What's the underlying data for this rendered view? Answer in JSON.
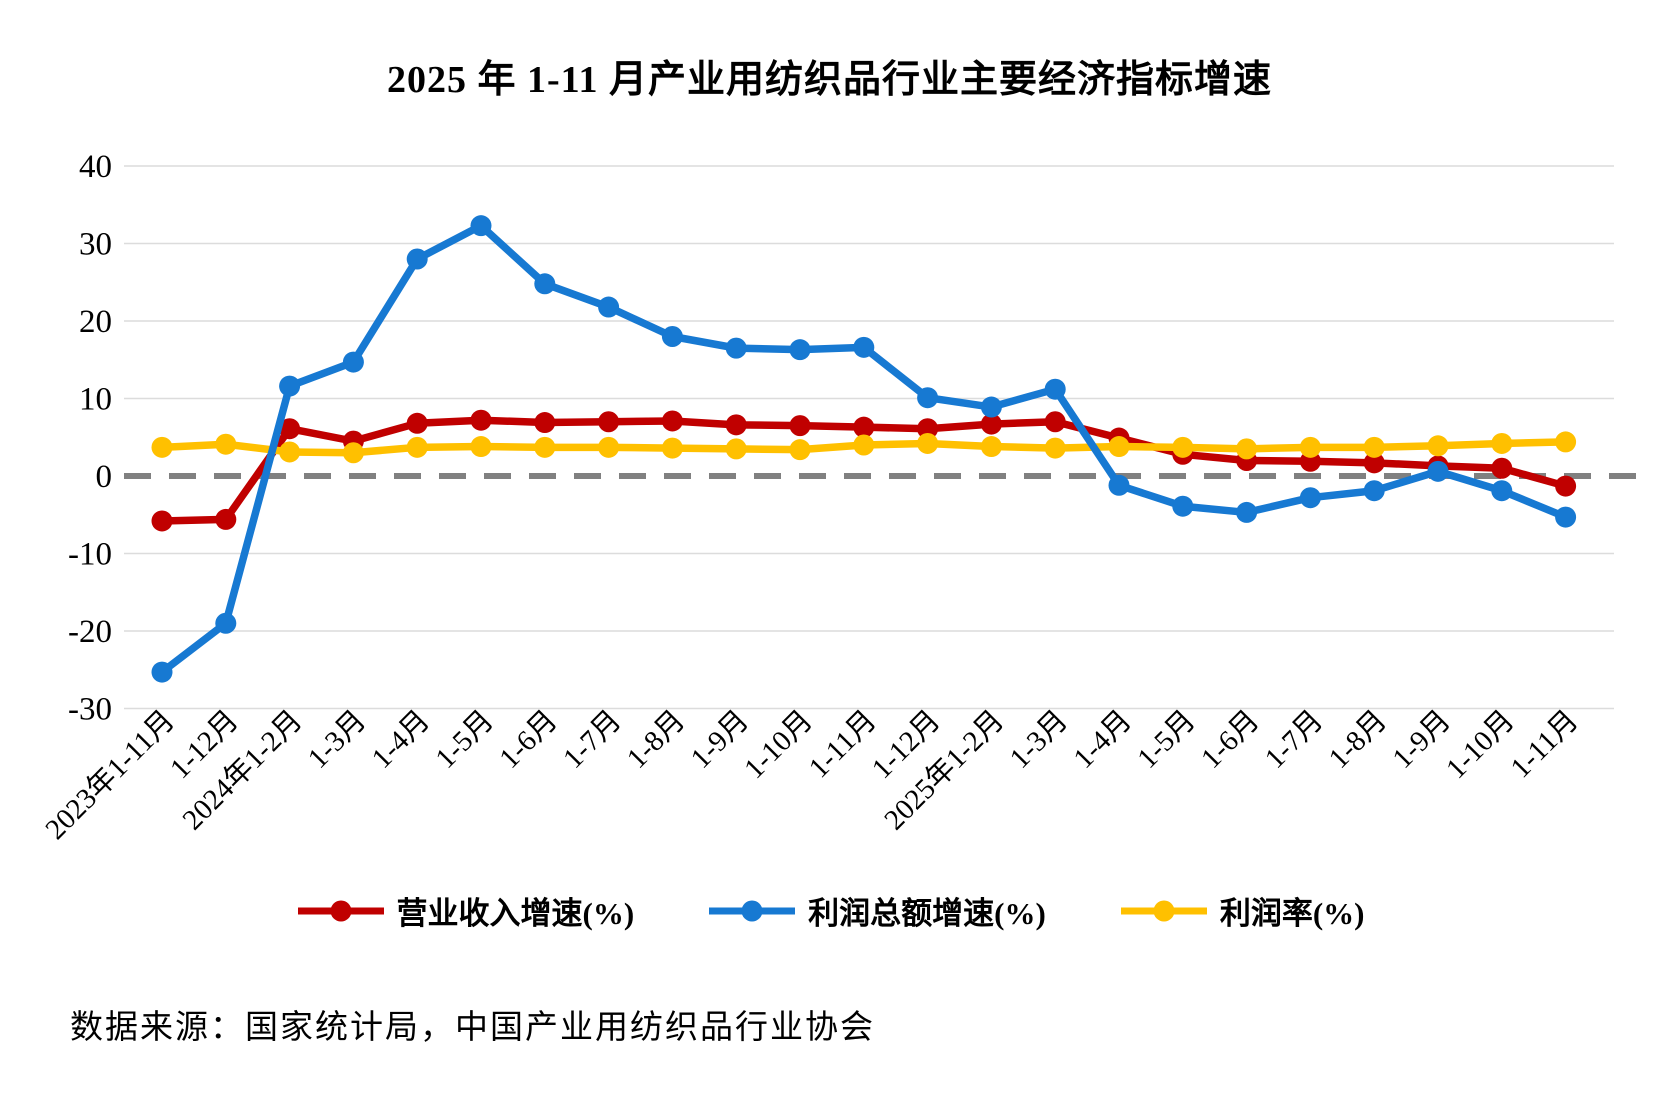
{
  "title": "2025 年 1-11 月产业用纺织品行业主要经济指标增速",
  "source": "数据来源：国家统计局，中国产业用纺织品行业协会",
  "chart_data": {
    "type": "line",
    "title": "2025 年 1-11 月产业用纺织品行业主要经济指标增速",
    "categories": [
      "2023年1-11月",
      "1-12月",
      "2024年1-2月",
      "1-3月",
      "1-4月",
      "1-5月",
      "1-6月",
      "1-7月",
      "1-8月",
      "1-9月",
      "1-10月",
      "1-11月",
      "1-12月",
      "2025年1-2月",
      "1-3月",
      "1-4月",
      "1-5月",
      "1-6月",
      "1-7月",
      "1-8月",
      "1-9月",
      "1-10月",
      "1-11月"
    ],
    "series": [
      {
        "name": "营业收入增速(%)",
        "color": "#C00000",
        "values": [
          -5.8,
          -5.6,
          6.1,
          4.5,
          6.8,
          7.2,
          6.9,
          7.0,
          7.1,
          6.6,
          6.5,
          6.3,
          6.1,
          6.7,
          7.0,
          4.9,
          2.8,
          2.0,
          1.9,
          1.7,
          1.3,
          1.0,
          -1.3
        ]
      },
      {
        "name": "利润总额增速(%)",
        "color": "#1779D2",
        "values": [
          -25.3,
          -19.0,
          11.6,
          14.7,
          28.0,
          32.3,
          24.8,
          21.8,
          18.0,
          16.5,
          16.3,
          16.6,
          10.1,
          8.9,
          11.2,
          -1.2,
          -3.9,
          -4.7,
          -2.8,
          -1.9,
          0.6,
          -1.9,
          -5.3
        ]
      },
      {
        "name": "利润率(%)",
        "color": "#FFC000",
        "values": [
          3.7,
          4.1,
          3.1,
          3.0,
          3.7,
          3.8,
          3.7,
          3.7,
          3.6,
          3.5,
          3.4,
          4.0,
          4.2,
          3.8,
          3.6,
          3.8,
          3.7,
          3.5,
          3.7,
          3.7,
          3.9,
          4.2,
          4.4
        ]
      }
    ],
    "ylim": [
      -30,
      40
    ],
    "yticks": [
      40,
      30,
      20,
      10,
      0,
      -10,
      -20,
      -30
    ],
    "grid": true,
    "zero_line": {
      "style": "dashed",
      "color": "#808080"
    },
    "gridline_color": "#DCDCDC",
    "legend_position": "bottom",
    "xlabel": "",
    "ylabel": ""
  }
}
